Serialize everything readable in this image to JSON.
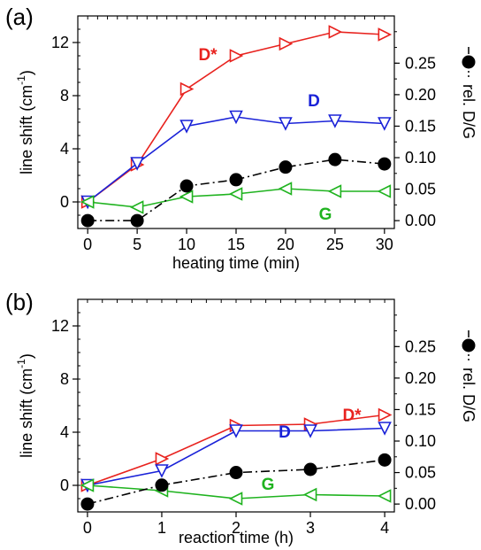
{
  "chart_data": [
    {
      "panel_label": "(a)",
      "type": "line",
      "xlabel": "heating time (min)",
      "ylabel": "line shift (cm",
      "ylabel_sup": "-1",
      "ylabel_close": ")",
      "y2label": "rel. D/G",
      "xlim": [
        -1,
        31
      ],
      "ylim": [
        -2,
        14
      ],
      "y2lim": [
        -0.0125,
        0.325
      ],
      "xticks": [
        0,
        5,
        10,
        15,
        20,
        25,
        30
      ],
      "yticks": [
        0,
        4,
        8,
        12
      ],
      "y2ticks": [
        0.0,
        0.05,
        0.1,
        0.15,
        0.2,
        0.25
      ],
      "y2ticklabels": [
        "0.00",
        "0.05",
        "0.10",
        "0.15",
        "0.20",
        "0.25"
      ],
      "series": [
        {
          "name": "D*",
          "axis": "left",
          "color": "#e8221e",
          "marker": "triangle-right",
          "x": [
            0,
            5,
            10,
            15,
            20,
            25,
            30
          ],
          "y": [
            0.0,
            2.8,
            8.5,
            11.0,
            11.9,
            12.8,
            12.6
          ]
        },
        {
          "name": "D",
          "axis": "left",
          "color": "#1a22d8",
          "marker": "triangle-down",
          "x": [
            0,
            5,
            10,
            15,
            20,
            25,
            30
          ],
          "y": [
            0.0,
            2.9,
            5.7,
            6.4,
            5.9,
            6.1,
            5.9
          ]
        },
        {
          "name": "G",
          "axis": "left",
          "color": "#1fb31f",
          "marker": "triangle-left",
          "x": [
            0,
            5,
            10,
            15,
            20,
            25,
            30
          ],
          "y": [
            0.0,
            -0.4,
            0.4,
            0.6,
            1.0,
            0.8,
            0.8
          ]
        },
        {
          "name": "rel. D/G",
          "axis": "right",
          "color": "#000000",
          "marker": "circle",
          "dash": true,
          "x": [
            0,
            5,
            10,
            15,
            20,
            25,
            30
          ],
          "y": [
            0.0,
            0.0,
            0.055,
            0.065,
            0.085,
            0.097,
            0.09
          ]
        }
      ],
      "labels": [
        {
          "text": "D*",
          "color": "#e8221e"
        },
        {
          "text": "D",
          "color": "#1a22d8"
        },
        {
          "text": "G",
          "color": "#1fb31f"
        }
      ]
    },
    {
      "panel_label": "(b)",
      "type": "line",
      "xlabel": "reaction time (h)",
      "ylabel": "line shift (cm",
      "ylabel_sup": "-1",
      "ylabel_close": ")",
      "y2label": "rel. D/G",
      "xlim": [
        -0.13,
        4.13
      ],
      "ylim": [
        -2,
        14
      ],
      "y2lim": [
        -0.0125,
        0.325
      ],
      "xticks": [
        0,
        1,
        2,
        3,
        4
      ],
      "yticks": [
        0,
        4,
        8,
        12
      ],
      "y2ticks": [
        0.0,
        0.05,
        0.1,
        0.15,
        0.2,
        0.25
      ],
      "y2ticklabels": [
        "0.00",
        "0.05",
        "0.10",
        "0.15",
        "0.20",
        "0.25"
      ],
      "series": [
        {
          "name": "D*",
          "axis": "left",
          "color": "#e8221e",
          "marker": "triangle-right",
          "x": [
            0,
            1,
            2,
            3,
            4
          ],
          "y": [
            0.0,
            2.0,
            4.5,
            4.6,
            5.3
          ]
        },
        {
          "name": "D",
          "axis": "left",
          "color": "#1a22d8",
          "marker": "triangle-down",
          "x": [
            0,
            1,
            2,
            3,
            4
          ],
          "y": [
            0.0,
            1.1,
            4.1,
            4.1,
            4.3
          ]
        },
        {
          "name": "G",
          "axis": "left",
          "color": "#1fb31f",
          "marker": "triangle-left",
          "x": [
            0,
            1,
            2,
            3,
            4
          ],
          "y": [
            0.0,
            -0.4,
            -1.0,
            -0.7,
            -0.8
          ]
        },
        {
          "name": "rel. D/G",
          "axis": "right",
          "color": "#000000",
          "marker": "circle",
          "dash": true,
          "x": [
            0,
            1,
            2,
            3,
            4
          ],
          "y": [
            0.0,
            0.03,
            0.05,
            0.055,
            0.07
          ]
        }
      ],
      "labels": [
        {
          "text": "D*",
          "color": "#e8221e"
        },
        {
          "text": "D",
          "color": "#1a22d8"
        },
        {
          "text": "G",
          "color": "#1fb31f"
        }
      ]
    }
  ]
}
